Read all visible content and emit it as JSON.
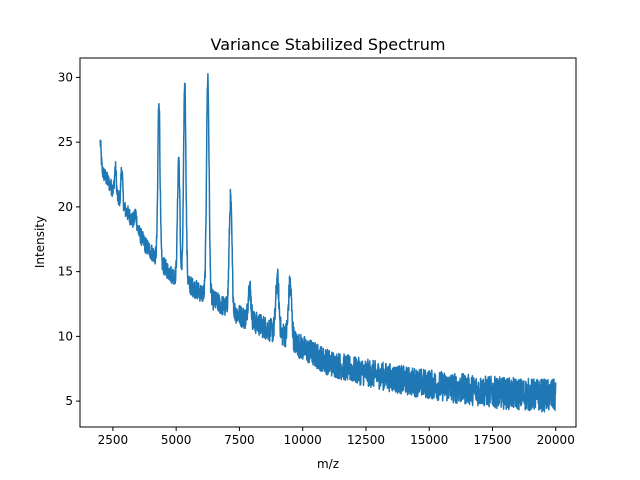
{
  "chart_data": {
    "type": "line",
    "title": "Variance Stabilized Spectrum",
    "xlabel": "m/z",
    "ylabel": "Intensity",
    "xlim": [
      1200,
      20800
    ],
    "ylim": [
      3.0,
      31.5
    ],
    "xticks": [
      2500,
      5000,
      7500,
      10000,
      12500,
      15000,
      17500,
      20000
    ],
    "xtick_labels": [
      "2500",
      "5000",
      "7500",
      "10000",
      "12500",
      "15000",
      "17500",
      "20000"
    ],
    "yticks": [
      5,
      10,
      15,
      20,
      25,
      30
    ],
    "ytick_labels": [
      "5",
      "10",
      "15",
      "20",
      "25",
      "30"
    ],
    "grid": false,
    "series": [
      {
        "color": "#1f77b4",
        "x_range": [
          2000,
          20000
        ],
        "baseline": {
          "x": [
            2000,
            2300,
            2800,
            3300,
            3800,
            4300,
            4800,
            5300,
            5800,
            6300,
            6800,
            7300,
            7800,
            8300,
            8800,
            9300,
            10000,
            11000,
            12000,
            13000,
            14000,
            15000,
            16000,
            17000,
            18000,
            19000,
            20000
          ],
          "y": [
            23.0,
            22.0,
            20.3,
            18.9,
            17.0,
            15.9,
            14.8,
            14.3,
            13.6,
            13.0,
            12.4,
            11.9,
            11.3,
            10.9,
            10.4,
            10.1,
            9.1,
            8.0,
            7.4,
            7.0,
            6.6,
            6.3,
            6.0,
            5.8,
            5.6,
            5.5,
            5.4
          ]
        },
        "noise_amplitude": {
          "x": [
            2000,
            5000,
            10000,
            20000
          ],
          "y": [
            0.6,
            0.7,
            1.0,
            1.3
          ]
        },
        "peaks": [
          {
            "x": 2000,
            "y": 25.0
          },
          {
            "x": 2600,
            "y": 23.0
          },
          {
            "x": 2850,
            "y": 22.9
          },
          {
            "x": 3400,
            "y": 19.5
          },
          {
            "x": 4320,
            "y": 28.3
          },
          {
            "x": 5100,
            "y": 23.9
          },
          {
            "x": 5340,
            "y": 29.6
          },
          {
            "x": 6250,
            "y": 30.1
          },
          {
            "x": 7150,
            "y": 20.6
          },
          {
            "x": 7900,
            "y": 13.9
          },
          {
            "x": 9000,
            "y": 14.4
          },
          {
            "x": 9500,
            "y": 14.0
          }
        ]
      }
    ]
  }
}
